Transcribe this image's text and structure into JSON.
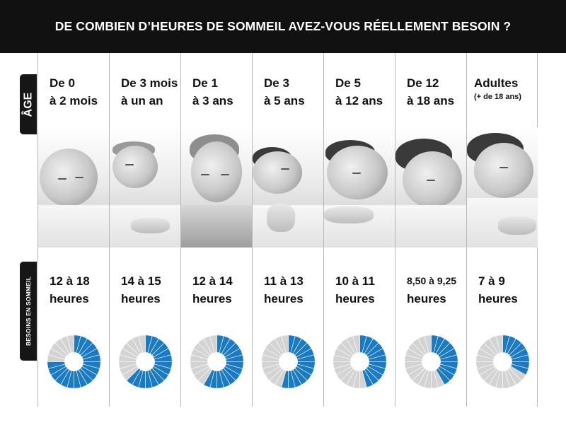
{
  "title": "DE COMBIEN D’HEURES DE SOMMEIL AVEZ-VOUS RÉELLEMENT BESOIN ?",
  "side_labels": {
    "age": "ÂGE",
    "needs": "BESOINS EN SOMMEIL"
  },
  "colors": {
    "header_bg": "#111111",
    "pie_fill": "#1a7bc4",
    "pie_bg": "#d3d3d3"
  },
  "columns": [
    {
      "age_line1": "De 0",
      "age_line2": "à 2 mois",
      "age_sub": "",
      "needs_line1": "12 à 18",
      "needs_line2": "heures",
      "pie_fraction": 0.75,
      "pie_segments": 18
    },
    {
      "age_line1": "De 3 mois",
      "age_line2": "à un an",
      "age_sub": "",
      "needs_line1": "14 à 15",
      "needs_line2": "heures",
      "pie_fraction": 0.625,
      "pie_segments": 15
    },
    {
      "age_line1": "De 1",
      "age_line2": "à 3 ans",
      "age_sub": "",
      "needs_line1": "12 à 14",
      "needs_line2": "heures",
      "pie_fraction": 0.583,
      "pie_segments": 14
    },
    {
      "age_line1": "De 3",
      "age_line2": "à 5 ans",
      "age_sub": "",
      "needs_line1": "11 à 13",
      "needs_line2": "heures",
      "pie_fraction": 0.542,
      "pie_segments": 13
    },
    {
      "age_line1": "De 5",
      "age_line2": "à 12 ans",
      "age_sub": "",
      "needs_line1": "10 à 11",
      "needs_line2": "heures",
      "pie_fraction": 0.458,
      "pie_segments": 11
    },
    {
      "age_line1": "De 12",
      "age_line2": "à 18 ans",
      "age_sub": "",
      "needs_line1": "8,50 à 9,25",
      "needs_line2": "heures",
      "pie_fraction": 0.385,
      "pie_segments": 10
    },
    {
      "age_line1": "Adultes",
      "age_line2": "",
      "age_sub": "(+ de 18 ans)",
      "needs_line1": "7 à 9",
      "needs_line2": "heures",
      "pie_fraction": 0.333,
      "pie_segments": 8
    }
  ]
}
